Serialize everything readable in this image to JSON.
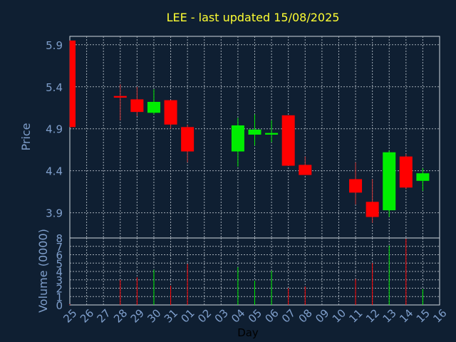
{
  "chart_data": {
    "type": "candlestick",
    "title": "LEE - last updated 15/08/2025",
    "xlabel": "Day",
    "price_panel": {
      "ylabel": "Price",
      "ylim": [
        3.6,
        6.0
      ],
      "yticks": [
        3.9,
        4.4,
        4.9,
        5.4,
        5.9
      ],
      "grid": true
    },
    "volume_panel": {
      "ylabel": "Volume (0000)",
      "ylim": [
        0,
        8
      ],
      "yticks": [
        0,
        1,
        2,
        3,
        4,
        5,
        6,
        7,
        8
      ],
      "grid": true
    },
    "categories": [
      "25",
      "26",
      "27",
      "28",
      "29",
      "30",
      "31",
      "01",
      "02",
      "03",
      "04",
      "05",
      "06",
      "07",
      "08",
      "09",
      "10",
      "11",
      "12",
      "13",
      "14",
      "15",
      "16"
    ],
    "candles": [
      {
        "day": "25",
        "open": 5.95,
        "high": 5.95,
        "low": 4.92,
        "close": 4.92
      },
      {
        "day": "28",
        "open": 5.29,
        "high": 5.43,
        "low": 5.0,
        "close": 5.27
      },
      {
        "day": "29",
        "open": 5.25,
        "high": 5.4,
        "low": 5.05,
        "close": 5.1
      },
      {
        "day": "30",
        "open": 5.09,
        "high": 5.37,
        "low": 5.07,
        "close": 5.22
      },
      {
        "day": "31",
        "open": 5.24,
        "high": 5.24,
        "low": 4.9,
        "close": 4.95
      },
      {
        "day": "01",
        "open": 4.92,
        "high": 4.95,
        "low": 4.5,
        "close": 4.63
      },
      {
        "day": "04",
        "open": 4.63,
        "high": 5.03,
        "low": 4.45,
        "close": 4.94
      },
      {
        "day": "05",
        "open": 4.83,
        "high": 5.07,
        "low": 4.7,
        "close": 4.89
      },
      {
        "day": "06",
        "open": 4.83,
        "high": 5.0,
        "low": 4.74,
        "close": 4.85
      },
      {
        "day": "07",
        "open": 5.06,
        "high": 5.06,
        "low": 4.46,
        "close": 4.46
      },
      {
        "day": "08",
        "open": 4.47,
        "high": 4.57,
        "low": 4.35,
        "close": 4.35
      },
      {
        "day": "11",
        "open": 4.3,
        "high": 4.5,
        "low": 4.0,
        "close": 4.14
      },
      {
        "day": "12",
        "open": 4.03,
        "high": 4.3,
        "low": 3.78,
        "close": 3.85
      },
      {
        "day": "13",
        "open": 3.93,
        "high": 4.64,
        "low": 3.85,
        "close": 4.62
      },
      {
        "day": "14",
        "open": 4.57,
        "high": 4.6,
        "low": 4.18,
        "close": 4.2
      },
      {
        "day": "15",
        "open": 4.28,
        "high": 4.43,
        "low": 4.16,
        "close": 4.37
      }
    ],
    "volume": [
      {
        "day": "25",
        "value": 0.1
      },
      {
        "day": "28",
        "value": 3.0
      },
      {
        "day": "29",
        "value": 3.3
      },
      {
        "day": "30",
        "value": 4.2
      },
      {
        "day": "31",
        "value": 2.3
      },
      {
        "day": "01",
        "value": 4.9
      },
      {
        "day": "04",
        "value": 4.5
      },
      {
        "day": "05",
        "value": 2.9
      },
      {
        "day": "06",
        "value": 4.1
      },
      {
        "day": "07",
        "value": 2.0
      },
      {
        "day": "08",
        "value": 2.2
      },
      {
        "day": "11",
        "value": 3.1
      },
      {
        "day": "12",
        "value": 5.0
      },
      {
        "day": "13",
        "value": 7.1
      },
      {
        "day": "14",
        "value": 7.9
      },
      {
        "day": "15",
        "value": 1.9
      }
    ],
    "colors": {
      "background": "#0f1f32",
      "plot_border": "#d0d8e0",
      "grid": "#a0aab4",
      "axis_text": "#7f9fcc",
      "title": "#ffff33",
      "up": "#00ee00",
      "down": "#ff0000",
      "wick": "#cc3333",
      "xlabel": "#000000"
    }
  }
}
